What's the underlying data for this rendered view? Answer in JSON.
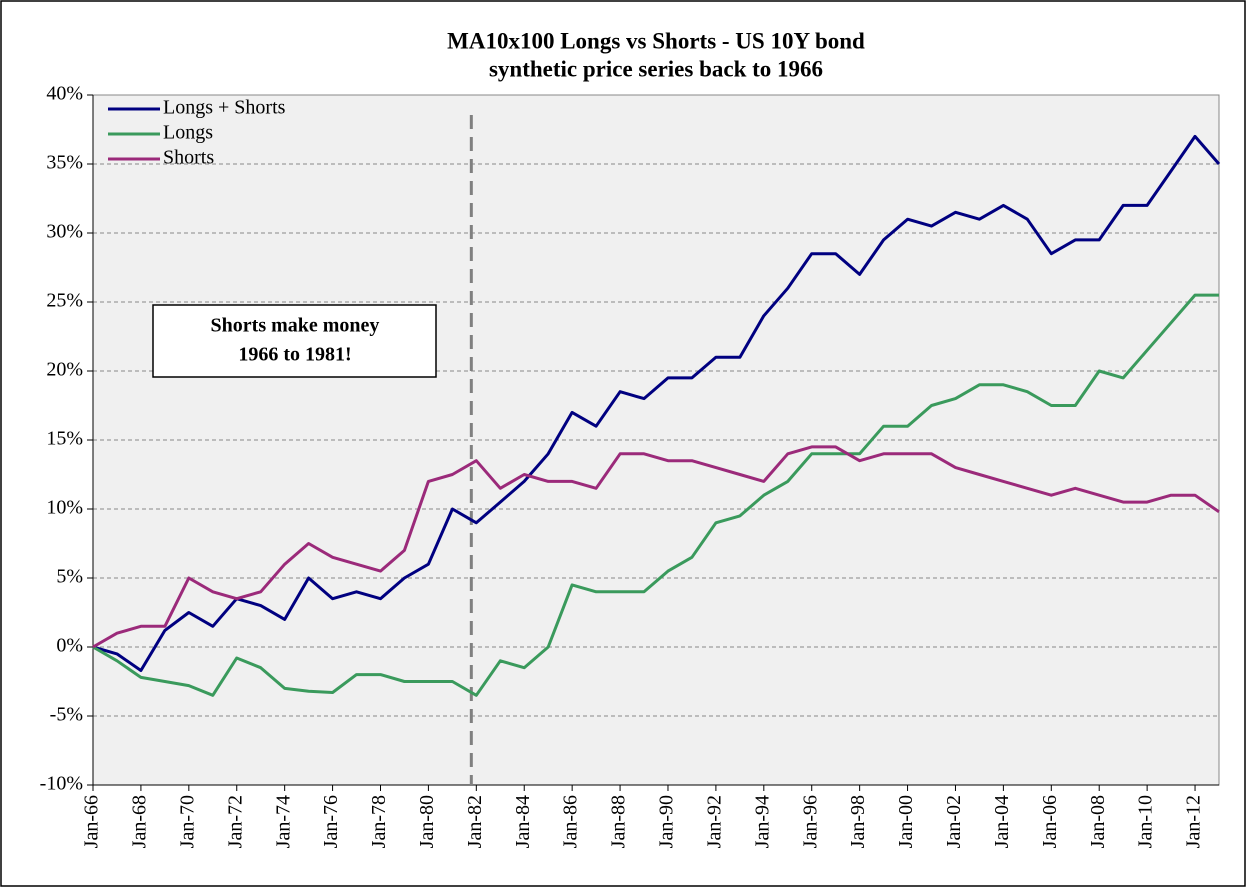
{
  "chart_data": {
    "type": "line",
    "title": "MA10x100 Longs vs Shorts - US 10Y bond",
    "subtitle": "synthetic price series back to 1966",
    "annotation": [
      "Shorts make money",
      "1966 to 1981!"
    ],
    "categories": [
      "Jan-66",
      null,
      "Jan-68",
      null,
      "Jan-70",
      null,
      "Jan-72",
      null,
      "Jan-74",
      null,
      "Jan-76",
      null,
      "Jan-78",
      null,
      "Jan-80",
      null,
      "Jan-82",
      null,
      "Jan-84",
      null,
      "Jan-86",
      null,
      "Jan-88",
      null,
      "Jan-90",
      null,
      "Jan-92",
      null,
      "Jan-94",
      null,
      "Jan-96",
      null,
      "Jan-98",
      null,
      "Jan-00",
      null,
      "Jan-02",
      null,
      "Jan-04",
      null,
      "Jan-06",
      null,
      "Jan-08",
      null,
      "Jan-10",
      null,
      "Jan-12",
      null
    ],
    "series": [
      {
        "name": "Longs + Shorts",
        "color": "#000080",
        "values": [
          0,
          -0.5,
          -1.7,
          1.2,
          2.5,
          1.5,
          3.5,
          3,
          2,
          5,
          3.5,
          4,
          3.5,
          5,
          6,
          10,
          9,
          10.5,
          12,
          14,
          17,
          16,
          18.5,
          18,
          19.5,
          19.5,
          21,
          21,
          24,
          26,
          28.5,
          28.5,
          27,
          29.5,
          31,
          30.5,
          31.5,
          31,
          32,
          31,
          28.5,
          29.5,
          29.5,
          32,
          32,
          34.5,
          37,
          35
        ]
      },
      {
        "name": "Longs",
        "color": "#3a9a5c",
        "values": [
          0,
          -1,
          -2.2,
          -2.5,
          -2.8,
          -3.5,
          -0.8,
          -1.5,
          -3,
          -3.2,
          -3.3,
          -2,
          -2,
          -2.5,
          -2.5,
          -2.5,
          -3.5,
          -1,
          -1.5,
          0,
          4.5,
          4,
          4,
          4,
          5.5,
          6.5,
          9,
          9.5,
          11,
          12,
          14,
          14,
          14,
          16,
          16,
          17.5,
          18,
          19,
          19,
          18.5,
          17.5,
          17.5,
          20,
          19.5,
          21.5,
          23.5,
          25.5,
          25.5
        ]
      },
      {
        "name": "Shorts",
        "color": "#9b2a7a",
        "values": [
          0,
          1,
          1.5,
          1.5,
          5,
          4,
          3.5,
          4,
          6,
          7.5,
          6.5,
          6,
          5.5,
          7,
          12,
          12.5,
          13.5,
          11.5,
          12.5,
          12,
          12,
          11.5,
          14,
          14,
          13.5,
          13.5,
          13,
          12.5,
          12,
          14,
          14.5,
          14.5,
          13.5,
          14,
          14,
          14,
          13,
          12.5,
          12,
          11.5,
          11,
          11.5,
          11,
          10.5,
          10.5,
          11,
          11,
          9.8
        ]
      }
    ],
    "ylim": [
      -10,
      40
    ],
    "yticks": [
      {
        "value": -10,
        "label": "-10%"
      },
      {
        "value": -5,
        "label": "-5%"
      },
      {
        "value": 0,
        "label": "0%"
      },
      {
        "value": 5,
        "label": "5%"
      },
      {
        "value": 10,
        "label": "10%"
      },
      {
        "value": 15,
        "label": "15%"
      },
      {
        "value": 20,
        "label": "20%"
      },
      {
        "value": 25,
        "label": "25%"
      },
      {
        "value": 30,
        "label": "30%"
      },
      {
        "value": 35,
        "label": "35%"
      },
      {
        "value": 40,
        "label": "40%"
      }
    ],
    "grid": true,
    "legend": "top-left"
  }
}
